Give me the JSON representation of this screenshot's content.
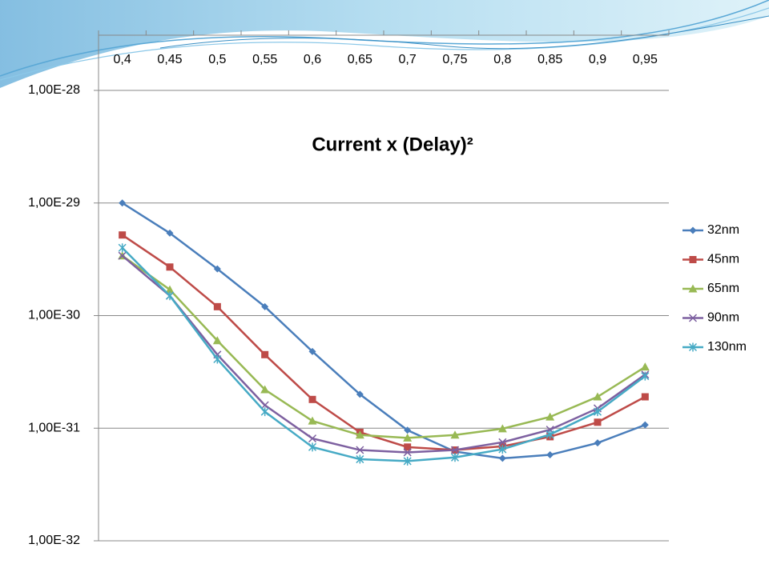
{
  "chart_data": {
    "type": "line",
    "title": "Current x (Delay)²",
    "categories": [
      "0,4",
      "0,45",
      "0,5",
      "0,55",
      "0,6",
      "0,65",
      "0,7",
      "0,75",
      "0,8",
      "0,85",
      "0,9",
      "0,95"
    ],
    "log_scale": true,
    "ylim": [
      1e-32,
      1e-28
    ],
    "yticks": [
      {
        "value": 1e-28,
        "label": "1,00E-28"
      },
      {
        "value": 1e-29,
        "label": "1,00E-29"
      },
      {
        "value": 1e-30,
        "label": "1,00E-30"
      },
      {
        "value": 1e-31,
        "label": "1,00E-31"
      },
      {
        "value": 1e-32,
        "label": "1,00E-32"
      }
    ],
    "grid": true,
    "legend": "right",
    "series": [
      {
        "name": "32nm",
        "color": "#4a7ebb",
        "marker": "diamond",
        "values": [
          1e-29,
          5.4e-30,
          2.6e-30,
          1.2e-30,
          4.8e-31,
          2e-31,
          9.6e-32,
          6.2e-32,
          5.4e-32,
          5.8e-32,
          7.4e-32,
          1.07e-31
        ]
      },
      {
        "name": "45nm",
        "color": "#be4b48",
        "marker": "square",
        "values": [
          5.2e-30,
          2.7e-30,
          1.2e-30,
          4.5e-31,
          1.8e-31,
          9.2e-32,
          6.8e-32,
          6.4e-32,
          6.9e-32,
          8.4e-32,
          1.13e-31,
          1.9e-31
        ]
      },
      {
        "name": "65nm",
        "color": "#98b954",
        "marker": "triangle",
        "values": [
          3.4e-30,
          1.7e-30,
          6e-31,
          2.2e-31,
          1.16e-31,
          8.7e-32,
          8.2e-32,
          8.7e-32,
          9.9e-32,
          1.26e-31,
          1.9e-31,
          3.5e-31
        ]
      },
      {
        "name": "90nm",
        "color": "#7d60a0",
        "marker": "x",
        "values": [
          3.4e-30,
          1.5e-30,
          4.5e-31,
          1.6e-31,
          8.1e-32,
          6.4e-32,
          6.1e-32,
          6.4e-32,
          7.5e-32,
          9.7e-32,
          1.5e-31,
          3e-31
        ]
      },
      {
        "name": "130nm",
        "color": "#46aac5",
        "marker": "star",
        "values": [
          4e-30,
          1.5e-30,
          4.1e-31,
          1.4e-31,
          6.8e-32,
          5.3e-32,
          5.1e-32,
          5.5e-32,
          6.5e-32,
          8.8e-32,
          1.4e-31,
          2.9e-31
        ]
      }
    ]
  }
}
